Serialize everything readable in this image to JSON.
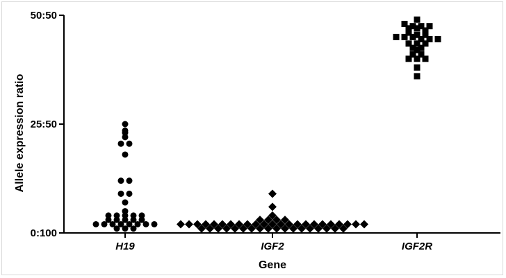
{
  "chart_data": {
    "type": "scatter",
    "xlabel": "Gene",
    "ylabel": "Allele expression ratio",
    "categories": [
      "H19",
      "IGF2",
      "IGF2R"
    ],
    "yticks": [
      {
        "value": 0,
        "label": "0:100"
      },
      {
        "value": 25,
        "label": "25:50"
      },
      {
        "value": 50,
        "label": "50:50"
      }
    ],
    "ylim": [
      0,
      50
    ],
    "grid": false,
    "legend": "none",
    "series": [
      {
        "category": "H19",
        "marker": "circle",
        "values": [
          25,
          23.5,
          23,
          22,
          20.5,
          20.5,
          18,
          12,
          12,
          9,
          9,
          7,
          5,
          4,
          4,
          4,
          4,
          4,
          3,
          3,
          3,
          3,
          3,
          2,
          2,
          2,
          2,
          2,
          2,
          2,
          2,
          1,
          1,
          1
        ]
      },
      {
        "category": "IGF2",
        "marker": "diamond",
        "values": [
          9,
          6,
          4,
          3,
          3,
          3,
          3,
          2,
          2,
          2,
          2,
          2,
          2,
          2,
          2,
          2,
          2,
          2,
          2,
          2,
          2,
          2,
          2,
          2,
          2,
          2,
          2,
          2,
          2,
          2,
          1,
          1,
          1,
          1,
          1,
          1,
          1,
          1,
          1,
          1,
          1,
          1,
          1,
          1,
          1,
          1,
          1,
          1
        ]
      },
      {
        "category": "IGF2R",
        "marker": "square",
        "values": [
          49,
          48,
          47.5,
          47.5,
          47.5,
          47,
          47,
          46.5,
          46,
          45.5,
          45.5,
          45,
          45,
          45,
          44.5,
          44.5,
          44.5,
          43.5,
          43.5,
          43.5,
          42.5,
          42.5,
          42,
          41,
          41,
          40,
          40,
          40,
          38,
          36
        ]
      }
    ]
  }
}
